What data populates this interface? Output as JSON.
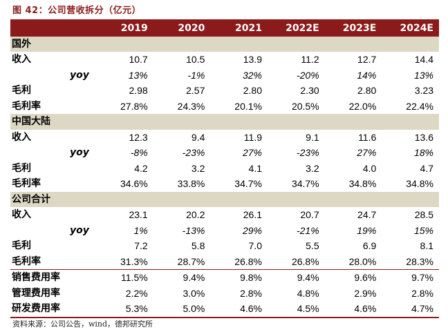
{
  "title": "图 42：公司营收拆分（亿元）",
  "source": "资料来源：公司公告，wind，德邦研究所",
  "years": [
    "2019",
    "2020",
    "2021",
    "2022E",
    "2023E",
    "2024E"
  ],
  "sections": [
    {
      "name": "国外",
      "rows": [
        {
          "label": "收入",
          "values": [
            "10.7",
            "10.5",
            "13.9",
            "11.2",
            "12.7",
            "14.4"
          ]
        },
        {
          "label": "yoy",
          "values": [
            "13%",
            "-1%",
            "32%",
            "-20%",
            "14%",
            "13%"
          ]
        },
        {
          "label": "毛利",
          "values": [
            "2.98",
            "2.57",
            "2.80",
            "2.30",
            "2.80",
            "3.23"
          ]
        },
        {
          "label": "毛利率",
          "values": [
            "27.8%",
            "24.3%",
            "20.1%",
            "20.5%",
            "22.0%",
            "22.4%"
          ]
        }
      ]
    },
    {
      "name": "中国大陆",
      "rows": [
        {
          "label": "收入",
          "values": [
            "12.3",
            "9.4",
            "11.9",
            "9.1",
            "11.6",
            "13.6"
          ]
        },
        {
          "label": "yoy",
          "values": [
            "-8%",
            "-23%",
            "27%",
            "-23%",
            "27%",
            "18%"
          ]
        },
        {
          "label": "毛利",
          "values": [
            "4.2",
            "3.2",
            "4.1",
            "3.2",
            "4.0",
            "4.7"
          ]
        },
        {
          "label": "毛利率",
          "values": [
            "34.6%",
            "33.8%",
            "34.7%",
            "34.7%",
            "34.8%",
            "34.8%"
          ]
        }
      ]
    },
    {
      "name": "公司合计",
      "rows": [
        {
          "label": "收入",
          "values": [
            "23.1",
            "20.2",
            "26.1",
            "20.7",
            "24.7",
            "28.5"
          ]
        },
        {
          "label": "yoy",
          "values": [
            "1%",
            "-13%",
            "29%",
            "-21%",
            "19%",
            "15%"
          ]
        },
        {
          "label": "毛利",
          "values": [
            "7.2",
            "5.8",
            "7.0",
            "5.5",
            "6.9",
            "8.1"
          ]
        },
        {
          "label": "毛利率",
          "values": [
            "31.3%",
            "28.7%",
            "26.8%",
            "26.8%",
            "28.0%",
            "28.3%"
          ]
        }
      ]
    }
  ],
  "expenses": [
    {
      "label": "销售费用率",
      "values": [
        "11.5%",
        "9.4%",
        "9.8%",
        "9.4%",
        "9.6%",
        "9.7%"
      ]
    },
    {
      "label": "管理费用率",
      "values": [
        "2.2%",
        "3.0%",
        "2.8%",
        "4.8%",
        "2.9%",
        "2.8%"
      ]
    },
    {
      "label": "研发费用率",
      "values": [
        "5.3%",
        "5.0%",
        "4.6%",
        "4.5%",
        "4.6%",
        "4.7%"
      ]
    }
  ]
}
